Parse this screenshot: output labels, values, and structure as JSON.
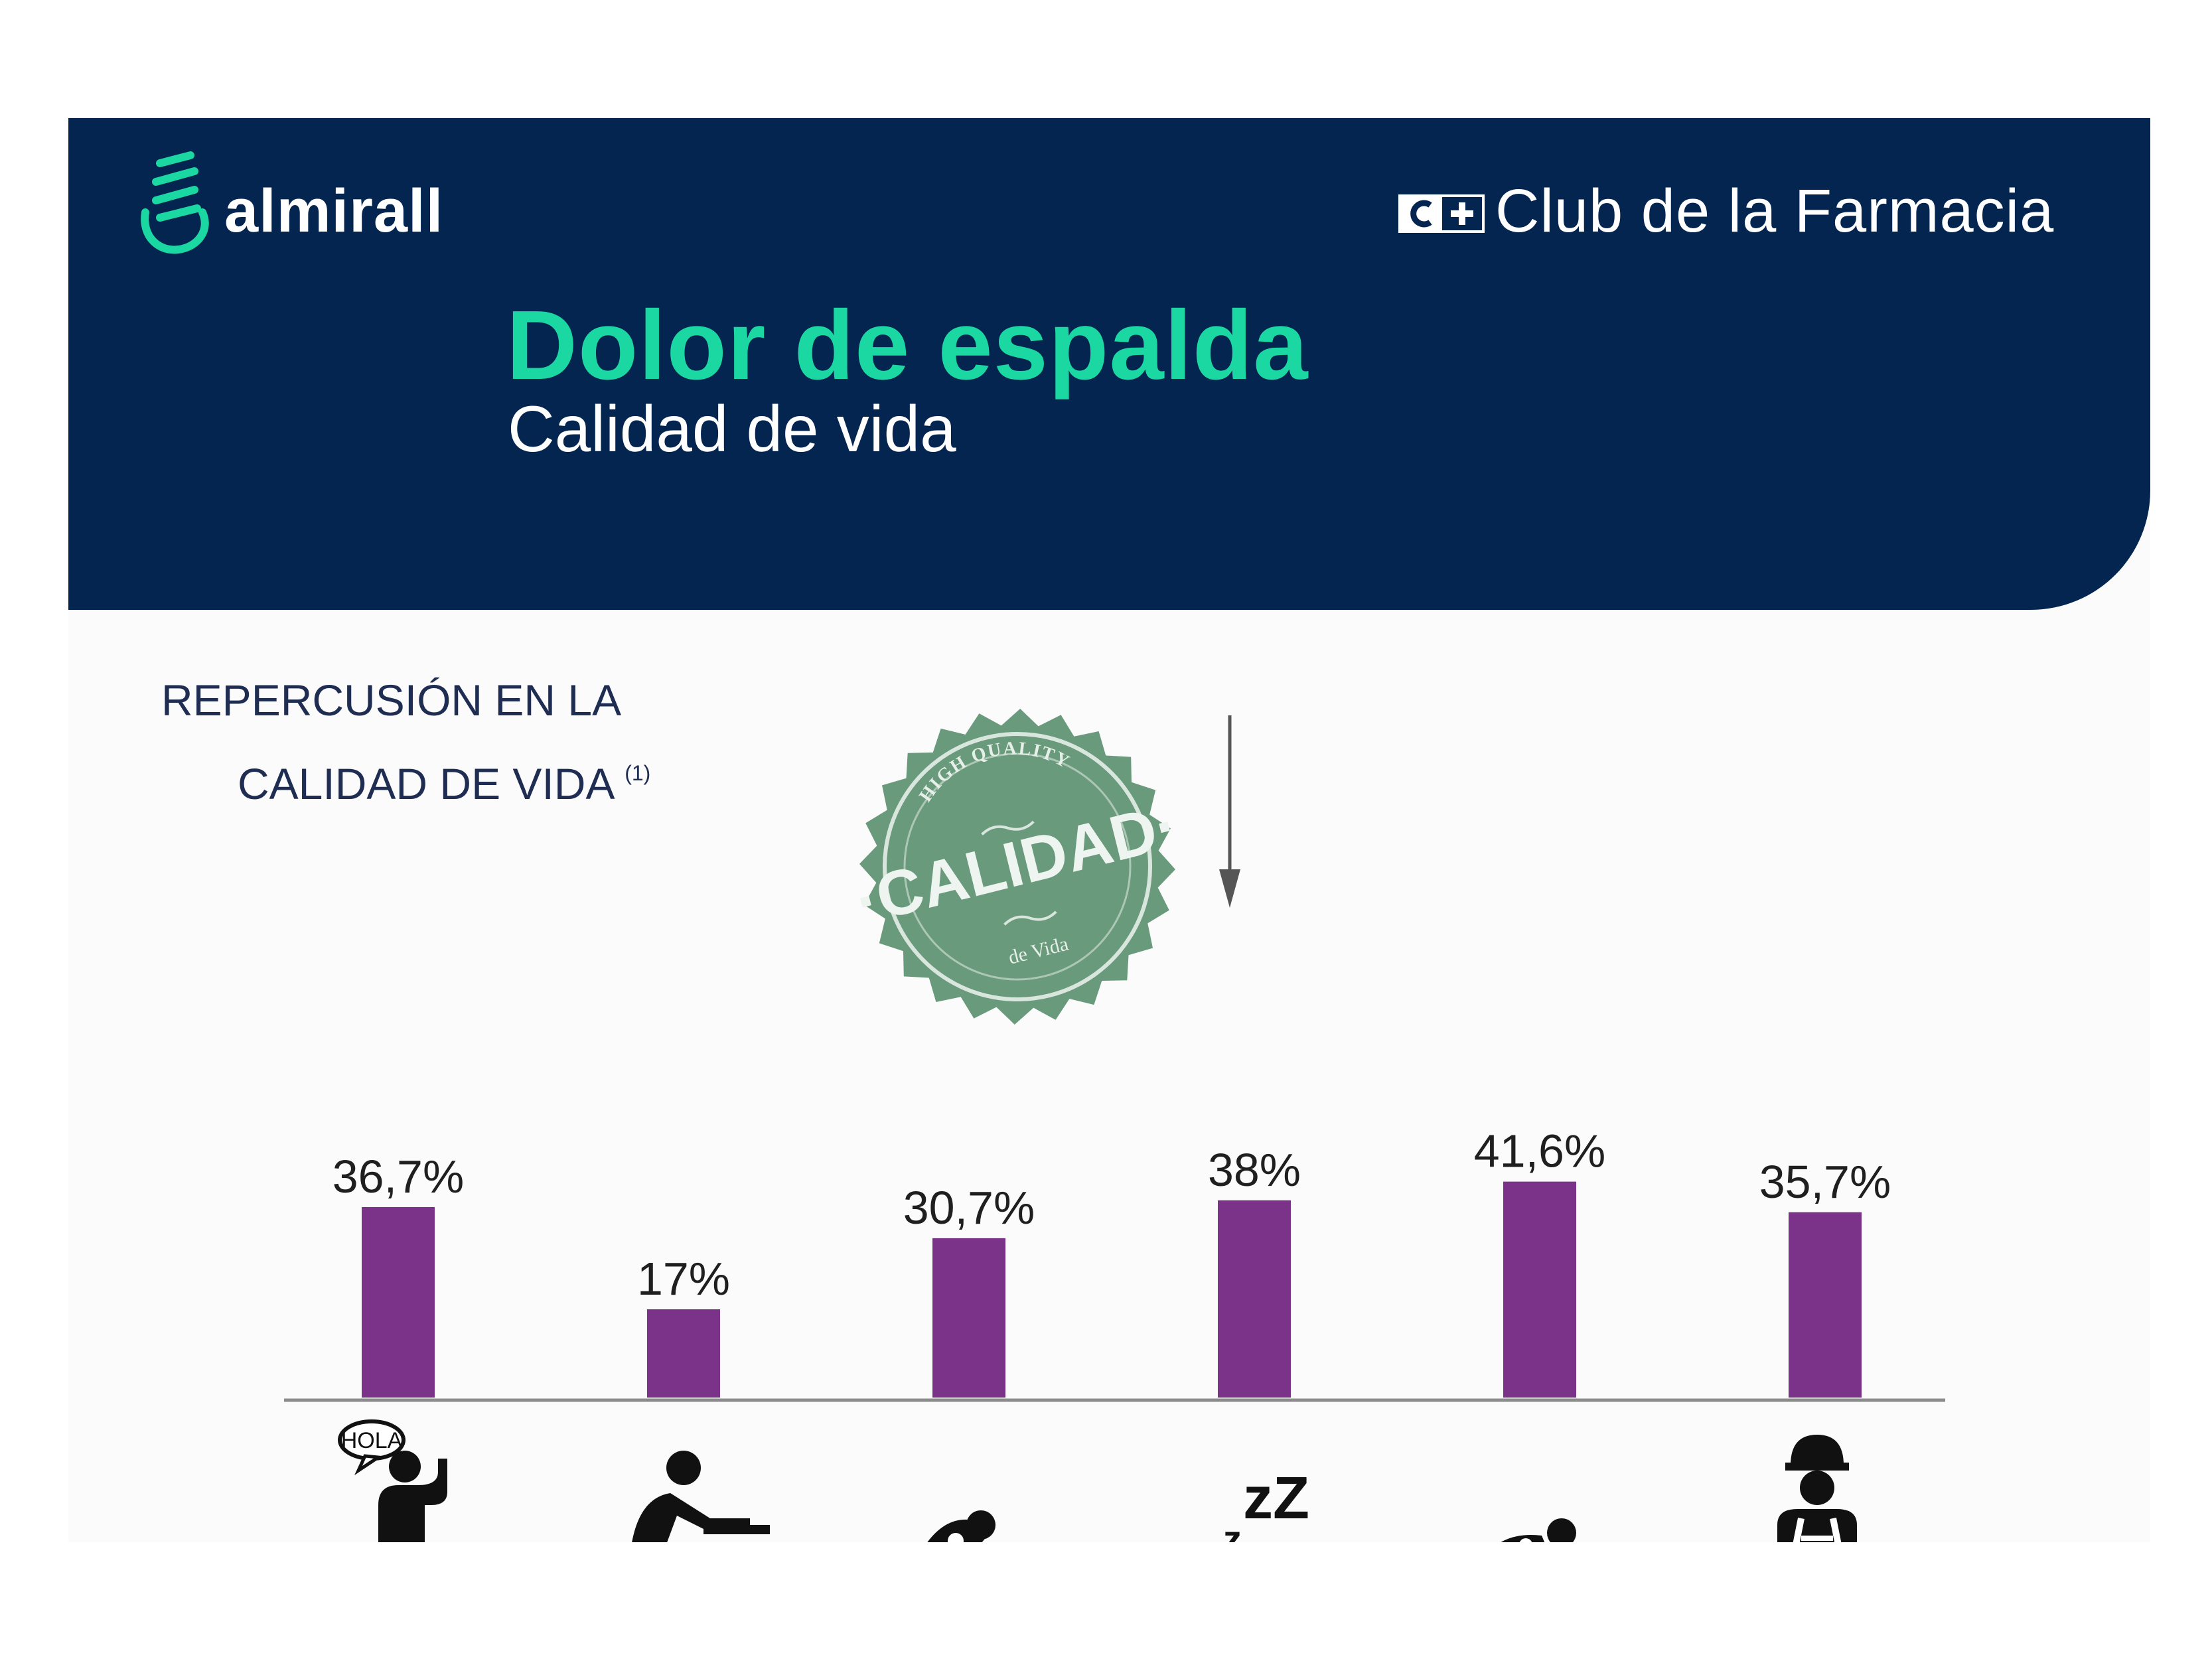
{
  "header": {
    "brand": "almirall",
    "club": "Club de la Farmacia",
    "club_icon": "c-plus-badge-icon",
    "title": "Dolor de espalda",
    "subtitle": "Calidad de vida",
    "accent_color": "#1bd8a2",
    "background_color": "#03254f"
  },
  "section": {
    "line1": "REPERCUSIÓN EN LA",
    "line2": "CALIDAD DE VIDA",
    "footnote": "(1)"
  },
  "stamp": {
    "top_text": "HIGH QUALITY",
    "main_text": "·CALIDAD·",
    "bottom_text": "de Vida"
  },
  "chart_data": {
    "type": "bar",
    "categories": [
      "",
      "",
      "",
      "",
      "",
      ""
    ],
    "values": [
      36.7,
      17,
      30.7,
      38,
      41.6,
      35.7
    ],
    "value_labels": [
      "36,7%",
      "17%",
      "30,7%",
      "38%",
      "41,6%",
      "35,7%"
    ],
    "icons": [
      "person-talking-icon",
      "person-leaning-icon",
      "person-bending-icon",
      "sleep-zzz-icon",
      "person-lying-icon",
      "worker-hardhat-icon"
    ],
    "icon_text": {
      "hola": "HOLA",
      "zzz": "zZ"
    },
    "bar_color": "#7b3289",
    "ylim": [
      0,
      45
    ],
    "grid": false,
    "title": "",
    "xlabel": "",
    "ylabel": ""
  }
}
